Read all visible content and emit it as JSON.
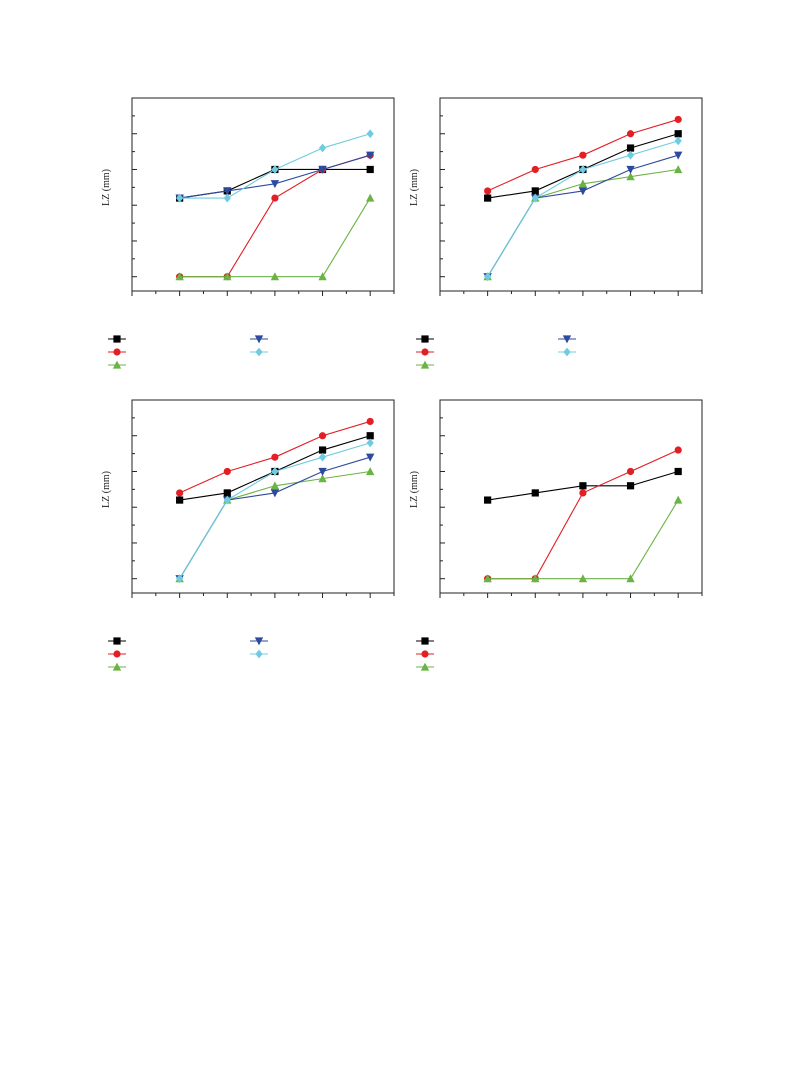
{
  "colors": {
    "black": "#000000",
    "red": "#e31e24",
    "green": "#6ab344",
    "blue": "#2e4a9e",
    "cyan": "#6fcbe0",
    "axis": "#222222"
  },
  "chart_data": [
    {
      "type": "line",
      "ylabel": "LZ (mm)",
      "x": [
        1,
        2,
        3,
        4,
        5
      ],
      "ylim": [
        0,
        5
      ],
      "series": [
        {
          "marker": "square",
          "color": "#000000",
          "values": [
            2.2,
            2.4,
            3.0,
            3.0,
            3.0
          ]
        },
        {
          "marker": "circle",
          "color": "#e31e24",
          "values": [
            0.0,
            0.0,
            2.2,
            3.0,
            3.4
          ]
        },
        {
          "marker": "triangle",
          "color": "#6ab344",
          "values": [
            0.0,
            0.0,
            0.0,
            0.0,
            2.2
          ]
        },
        {
          "marker": "tri-down",
          "color": "#2e4a9e",
          "values": [
            2.2,
            2.4,
            2.6,
            3.0,
            3.4
          ]
        },
        {
          "marker": "diamond",
          "color": "#6fcbe0",
          "values": [
            2.2,
            2.2,
            3.0,
            3.6,
            4.0
          ]
        }
      ]
    },
    {
      "type": "line",
      "ylabel": "LZ (mm)",
      "x": [
        1,
        2,
        3,
        4,
        5
      ],
      "ylim": [
        0,
        5
      ],
      "series": [
        {
          "marker": "square",
          "color": "#000000",
          "values": [
            2.2,
            2.4,
            3.0,
            3.6,
            4.0
          ]
        },
        {
          "marker": "circle",
          "color": "#e31e24",
          "values": [
            2.4,
            3.0,
            3.4,
            4.0,
            4.4
          ]
        },
        {
          "marker": "triangle",
          "color": "#6ab344",
          "values": [
            0.0,
            2.2,
            2.6,
            2.8,
            3.0
          ]
        },
        {
          "marker": "tri-down",
          "color": "#2e4a9e",
          "values": [
            0.0,
            2.2,
            2.4,
            3.0,
            3.4
          ]
        },
        {
          "marker": "diamond",
          "color": "#6fcbe0",
          "values": [
            0.0,
            2.2,
            3.0,
            3.4,
            3.8
          ]
        }
      ]
    },
    {
      "type": "line",
      "ylabel": "LZ (mm)",
      "x": [
        1,
        2,
        3,
        4,
        5
      ],
      "ylim": [
        0,
        5
      ],
      "series": [
        {
          "marker": "square",
          "color": "#000000",
          "values": [
            2.2,
            2.4,
            3.0,
            3.6,
            4.0
          ]
        },
        {
          "marker": "circle",
          "color": "#e31e24",
          "values": [
            2.4,
            3.0,
            3.4,
            4.0,
            4.4
          ]
        },
        {
          "marker": "triangle",
          "color": "#6ab344",
          "values": [
            0.0,
            2.2,
            2.6,
            2.8,
            3.0
          ]
        },
        {
          "marker": "tri-down",
          "color": "#2e4a9e",
          "values": [
            0.0,
            2.2,
            2.4,
            3.0,
            3.4
          ]
        },
        {
          "marker": "diamond",
          "color": "#6fcbe0",
          "values": [
            0.0,
            2.2,
            3.0,
            3.4,
            3.8
          ]
        }
      ]
    },
    {
      "type": "line",
      "ylabel": "LZ (mm)",
      "x": [
        1,
        2,
        3,
        4,
        5
      ],
      "ylim": [
        0,
        5
      ],
      "series": [
        {
          "marker": "square",
          "color": "#000000",
          "values": [
            2.2,
            2.4,
            2.6,
            2.6,
            3.0
          ]
        },
        {
          "marker": "circle",
          "color": "#e31e24",
          "values": [
            0.0,
            0.0,
            2.4,
            3.0,
            3.6
          ]
        },
        {
          "marker": "triangle",
          "color": "#6ab344",
          "values": [
            0.0,
            0.0,
            0.0,
            0.0,
            2.2
          ]
        }
      ]
    }
  ]
}
